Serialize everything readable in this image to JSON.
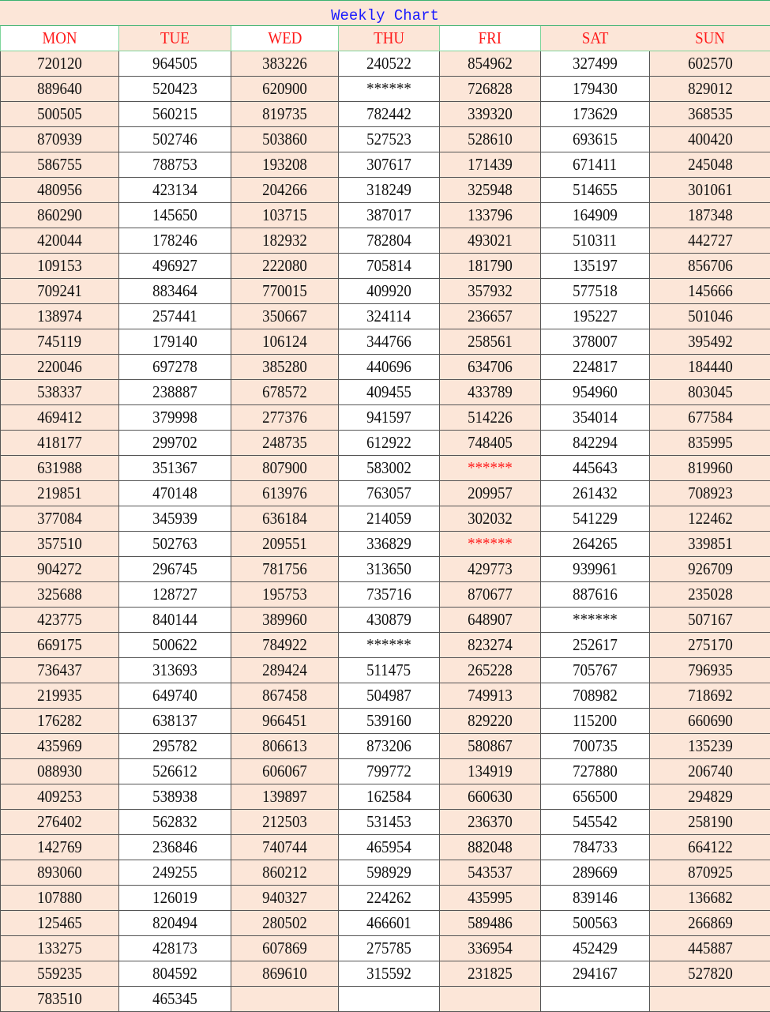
{
  "title": "Weekly Chart",
  "days": [
    "MON",
    "TUE",
    "WED",
    "THU",
    "FRI",
    "SAT",
    "SUN"
  ],
  "colors": {
    "peach": "#fce6d8",
    "title": "#1a1aff",
    "header": "#ff1a1a",
    "highlight": "#ff1a1a",
    "grid": "#3cb371"
  },
  "highlighted_cells": [
    {
      "row": 16,
      "col": 4
    },
    {
      "row": 19,
      "col": 4
    }
  ],
  "rows": [
    [
      "720120",
      "964505",
      "383226",
      "240522",
      "854962",
      "327499",
      "602570"
    ],
    [
      "889640",
      "520423",
      "620900",
      "******",
      "726828",
      "179430",
      "829012"
    ],
    [
      "500505",
      "560215",
      "819735",
      "782442",
      "339320",
      "173629",
      "368535"
    ],
    [
      "870939",
      "502746",
      "503860",
      "527523",
      "528610",
      "693615",
      "400420"
    ],
    [
      "586755",
      "788753",
      "193208",
      "307617",
      "171439",
      "671411",
      "245048"
    ],
    [
      "480956",
      "423134",
      "204266",
      "318249",
      "325948",
      "514655",
      "301061"
    ],
    [
      "860290",
      "145650",
      "103715",
      "387017",
      "133796",
      "164909",
      "187348"
    ],
    [
      "420044",
      "178246",
      "182932",
      "782804",
      "493021",
      "510311",
      "442727"
    ],
    [
      "109153",
      "496927",
      "222080",
      "705814",
      "181790",
      "135197",
      "856706"
    ],
    [
      "709241",
      "883464",
      "770015",
      "409920",
      "357932",
      "577518",
      "145666"
    ],
    [
      "138974",
      "257441",
      "350667",
      "324114",
      "236657",
      "195227",
      "501046"
    ],
    [
      "745119",
      "179140",
      "106124",
      "344766",
      "258561",
      "378007",
      "395492"
    ],
    [
      "220046",
      "697278",
      "385280",
      "440696",
      "634706",
      "224817",
      "184440"
    ],
    [
      "538337",
      "238887",
      "678572",
      "409455",
      "433789",
      "954960",
      "803045"
    ],
    [
      "469412",
      "379998",
      "277376",
      "941597",
      "514226",
      "354014",
      "677584"
    ],
    [
      "418177",
      "299702",
      "248735",
      "612922",
      "748405",
      "842294",
      "835995"
    ],
    [
      "631988",
      "351367",
      "807900",
      "583002",
      "******",
      "445643",
      "819960"
    ],
    [
      "219851",
      "470148",
      "613976",
      "763057",
      "209957",
      "261432",
      "708923"
    ],
    [
      "377084",
      "345939",
      "636184",
      "214059",
      "302032",
      "541229",
      "122462"
    ],
    [
      "357510",
      "502763",
      "209551",
      "336829",
      "******",
      "264265",
      "339851"
    ],
    [
      "904272",
      "296745",
      "781756",
      "313650",
      "429773",
      "939961",
      "926709"
    ],
    [
      "325688",
      "128727",
      "195753",
      "735716",
      "870677",
      "887616",
      "235028"
    ],
    [
      "423775",
      "840144",
      "389960",
      "430879",
      "648907",
      "******",
      "507167"
    ],
    [
      "669175",
      "500622",
      "784922",
      "******",
      "823274",
      "252617",
      "275170"
    ],
    [
      "736437",
      "313693",
      "289424",
      "511475",
      "265228",
      "705767",
      "796935"
    ],
    [
      "219935",
      "649740",
      "867458",
      "504987",
      "749913",
      "708982",
      "718692"
    ],
    [
      "176282",
      "638137",
      "966451",
      "539160",
      "829220",
      "115200",
      "660690"
    ],
    [
      "435969",
      "295782",
      "806613",
      "873206",
      "580867",
      "700735",
      "135239"
    ],
    [
      "088930",
      "526612",
      "606067",
      "799772",
      "134919",
      "727880",
      "206740"
    ],
    [
      "409253",
      "538938",
      "139897",
      "162584",
      "660630",
      "656500",
      "294829"
    ],
    [
      "276402",
      "562832",
      "212503",
      "531453",
      "236370",
      "545542",
      "258190"
    ],
    [
      "142769",
      "236846",
      "740744",
      "465954",
      "882048",
      "784733",
      "664122"
    ],
    [
      "893060",
      "249255",
      "860212",
      "598929",
      "543537",
      "289669",
      "870925"
    ],
    [
      "107880",
      "126019",
      "940327",
      "224262",
      "435995",
      "839146",
      "136682"
    ],
    [
      "125465",
      "820494",
      "280502",
      "466601",
      "589486",
      "500563",
      "266869"
    ],
    [
      "133275",
      "428173",
      "607869",
      "275785",
      "336954",
      "452429",
      "445887"
    ],
    [
      "559235",
      "804592",
      "869610",
      "315592",
      "231825",
      "294167",
      "527820"
    ],
    [
      "783510",
      "465345",
      "",
      "",
      "",
      "",
      ""
    ]
  ]
}
